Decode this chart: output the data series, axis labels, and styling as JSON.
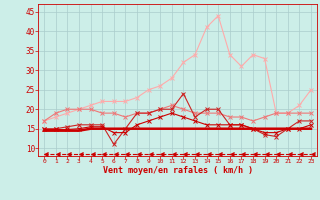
{
  "title": "",
  "xlabel": "Vent moyen/en rafales ( km/h )",
  "ylabel": "",
  "background_color": "#cceee8",
  "grid_color": "#aacccc",
  "x_ticks": [
    0,
    1,
    2,
    3,
    4,
    5,
    6,
    7,
    8,
    9,
    10,
    11,
    12,
    13,
    14,
    15,
    16,
    17,
    18,
    19,
    20,
    21,
    22,
    23
  ],
  "ylim": [
    8,
    47
  ],
  "yticks": [
    10,
    15,
    20,
    25,
    30,
    35,
    40,
    45
  ],
  "lines": [
    {
      "x": [
        0,
        1,
        2,
        3,
        4,
        5,
        6,
        7,
        8,
        9,
        10,
        11,
        12,
        13,
        14,
        15,
        16,
        17,
        18,
        19,
        20,
        21,
        22,
        23
      ],
      "y": [
        17,
        18,
        19,
        20,
        21,
        22,
        22,
        22,
        23,
        25,
        26,
        28,
        32,
        34,
        41,
        44,
        34,
        31,
        34,
        33,
        19,
        19,
        21,
        25
      ],
      "color": "#ffaaaa",
      "linewidth": 0.8,
      "marker": "x",
      "markersize": 2.5,
      "linestyle": "-",
      "zorder": 2
    },
    {
      "x": [
        0,
        1,
        2,
        3,
        4,
        5,
        6,
        7,
        8,
        9,
        10,
        11,
        12,
        13,
        14,
        15,
        16,
        17,
        18,
        19,
        20,
        21,
        22,
        23
      ],
      "y": [
        17,
        19,
        20,
        20,
        20,
        19,
        19,
        18,
        19,
        19,
        20,
        21,
        20,
        19,
        19,
        19,
        18,
        18,
        17,
        18,
        19,
        19,
        19,
        19
      ],
      "color": "#ee7777",
      "linewidth": 0.8,
      "marker": "x",
      "markersize": 2.5,
      "linestyle": "-",
      "zorder": 3
    },
    {
      "x": [
        0,
        1,
        2,
        3,
        4,
        5,
        6,
        7,
        8,
        9,
        10,
        11,
        12,
        13,
        14,
        15,
        16,
        17,
        18,
        19,
        20,
        21,
        22,
        23
      ],
      "y": [
        15,
        15,
        15.5,
        16,
        16,
        16,
        11,
        15,
        19,
        19,
        20,
        20,
        24,
        18,
        20,
        20,
        16,
        16,
        15,
        13.5,
        13,
        15,
        17,
        17
      ],
      "color": "#cc2222",
      "linewidth": 0.8,
      "marker": "x",
      "markersize": 2.5,
      "linestyle": "-",
      "zorder": 4
    },
    {
      "x": [
        0,
        1,
        2,
        3,
        4,
        5,
        6,
        7,
        8,
        9,
        10,
        11,
        12,
        13,
        14,
        15,
        16,
        17,
        18,
        19,
        20,
        21,
        22,
        23
      ],
      "y": [
        14.8,
        14.8,
        14.8,
        15,
        15.5,
        15.5,
        14,
        14,
        16,
        17,
        18,
        19,
        18,
        17,
        16,
        16,
        16,
        16,
        15,
        14,
        14,
        15,
        15,
        16
      ],
      "color": "#cc0000",
      "linewidth": 0.8,
      "marker": "x",
      "markersize": 2.5,
      "linestyle": "-",
      "zorder": 5
    },
    {
      "x": [
        0,
        1,
        2,
        3,
        4,
        5,
        6,
        7,
        8,
        9,
        10,
        11,
        12,
        13,
        14,
        15,
        16,
        17,
        18,
        19,
        20,
        21,
        22,
        23
      ],
      "y": [
        14.5,
        14.5,
        14.5,
        14.5,
        15,
        15,
        15,
        15,
        15,
        15,
        15,
        15,
        15,
        15,
        15,
        15,
        15,
        15,
        15,
        15,
        15,
        15,
        15,
        15
      ],
      "color": "#cc0000",
      "linewidth": 1.8,
      "marker": null,
      "linestyle": "-",
      "zorder": 4
    },
    {
      "x": [
        0,
        1,
        2,
        3,
        4,
        5,
        6,
        7,
        8,
        9,
        10,
        11,
        12,
        13,
        14,
        15,
        16,
        17,
        18,
        19,
        20,
        21,
        22,
        23
      ],
      "y": [
        8.5,
        8.5,
        8.5,
        8.5,
        8.5,
        8.5,
        8.5,
        8.5,
        8.5,
        8.5,
        8.5,
        8.5,
        8.5,
        8.5,
        8.5,
        8.5,
        8.5,
        8.5,
        8.5,
        8.5,
        8.5,
        8.5,
        8.5,
        8.5
      ],
      "color": "#cc0000",
      "linewidth": 0.8,
      "marker": 4,
      "markersize": 3.5,
      "linestyle": "--",
      "zorder": 2
    }
  ]
}
